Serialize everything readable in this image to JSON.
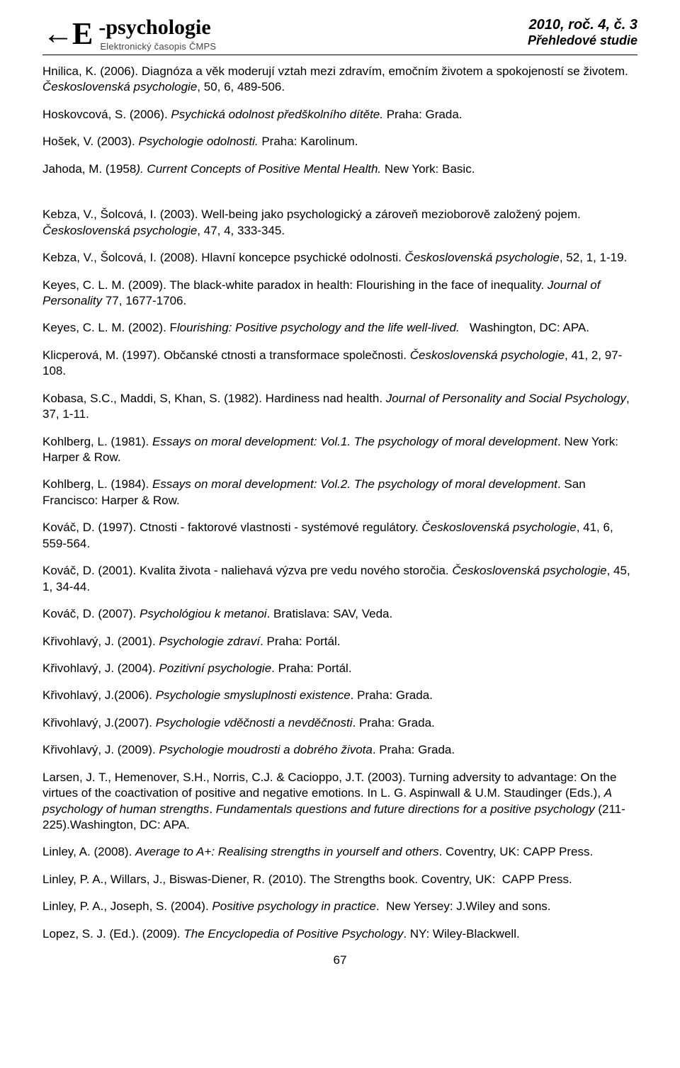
{
  "header": {
    "logo_glyph": "←E",
    "logo_title": "-psychologie",
    "logo_subtitle": "Elektronický časopis ČMPS",
    "issue_line": "2010, roč. 4, č. 3",
    "issue_sub": "Přehledové studie"
  },
  "refs": [
    {
      "html": "Hnilica, K. (2006). Diagnóza a věk moderují vztah mezi zdravím, emočním životem a spokojeností se životem. <em>Československá psychologie</em>, 50, 6, 489-506."
    },
    {
      "html": "Hoskovcová, S. (2006). <em>Psychická odolnost předškolního dítěte.</em> Praha: Grada."
    },
    {
      "html": "Hošek, V. (2003). <em>Psychologie odolnosti.</em> Praha: Karolinum."
    },
    {
      "html": "Jahoda, M. (1958<em>). Current Concepts of Positive Mental Health.</em> New York: Basic.",
      "gap": true
    },
    {
      "html": "Kebza, V., Šolcová, I. (2003). Well-being jako psychologický a zároveň mezioborově založený pojem. <em>Československá psychologie</em>, 47, 4, 333-345."
    },
    {
      "html": "Kebza, V., Šolcová, I. (2008). Hlavní koncepce psychické odolnosti. <em>Československá psychologie</em>, 52, 1, 1-19."
    },
    {
      "html": "Keyes, C. L. M. (2009). The black-white paradox in health: Flourishing in the face of inequality. <em>Journal of Personality</em> 77, 1677-1706."
    },
    {
      "html": "Keyes, C. L. M. (2002). F<em>lourishing: Positive psychology and the life well-lived.</em>&nbsp;&nbsp;&nbsp;Washington, DC: APA."
    },
    {
      "html": "Klicperová, M. (1997). Občanské ctnosti a transformace společnosti. <em>Československá psychologie</em>, 41, 2, 97-108."
    },
    {
      "html": "Kobasa, S.C., Maddi, S, Khan, S. (1982). Hardiness nad health. <em>Journal of Personality and Social Psychology</em>, 37, 1-11."
    },
    {
      "html": "Kohlberg, L. (1981). <em>Essays on moral development: Vol.1. The psychology of moral development</em>. New York: Harper &amp; Row."
    },
    {
      "html": "Kohlberg, L. (1984). <em>Essays on moral development: Vol.2. The psychology of moral development</em>. San Francisco: Harper &amp; Row."
    },
    {
      "html": "Kováč, D. (1997). Ctnosti - faktorové vlastnosti - systémové regulátory. <em>Československá psychologie</em>, 41, 6, 559-564."
    },
    {
      "html": "Kováč, D. (2001). Kvalita života - naliehavá výzva pre vedu nového storočia. <em>Československá psychologie</em>, 45, 1, 34-44."
    },
    {
      "html": "Kováč, D. (2007). <em>Psychológiou k metanoi</em>. Bratislava: SAV, Veda."
    },
    {
      "html": "Křivohlavý, J. (2001). <em>Psychologie zdraví</em>. Praha: Portál."
    },
    {
      "html": "Křivohlavý, J. (2004). <em>Pozitivní psychologie</em>. Praha: Portál."
    },
    {
      "html": "Křivohlavý, J.(2006). <em>Psychologie smysluplnosti existence</em>. Praha: Grada."
    },
    {
      "html": "Křivohlavý, J.(2007). <em>Psychologie vděčnosti a nevděčnosti</em>. Praha: Grada."
    },
    {
      "html": "Křivohlavý, J. (2009). <em>Psychologie moudrosti a dobrého života</em>. Praha: Grada."
    },
    {
      "html": "Larsen, J. T., Hemenover, S.H., Norris, C.J. &amp; Cacioppo, J.T. (2003). Turning adversity to advantage: On the virtues of the coactivation of positive and negative emotions. In L. G. Aspinwall &amp; U.M. Staudinger (Eds.), <em>A psychology of human strengths</em>. <em>Fundamentals questions and future directions for a positive psychology</em> (211-225).Washington, DC: APA."
    },
    {
      "html": "Linley, A. (2008). <em>Average to A+: Realising strengths in yourself and others</em>. Coventry, UK: CAPP Press."
    },
    {
      "html": "Linley, P. A., Willars, J., Biswas-Diener, R. (2010). The Strengths book. Coventry, UK:&nbsp;&nbsp;CAPP Press."
    },
    {
      "html": "Linley, P. A., Joseph, S. (2004). <em>Positive psychology in practice</em>.&nbsp;&nbsp;New Yersey: J.Wiley and sons."
    },
    {
      "html": "Lopez, S. J. (Ed.). (2009). <em>The Encyclopedia of Positive Psychology</em>. NY: Wiley-Blackwell."
    }
  ],
  "page_number": "67"
}
